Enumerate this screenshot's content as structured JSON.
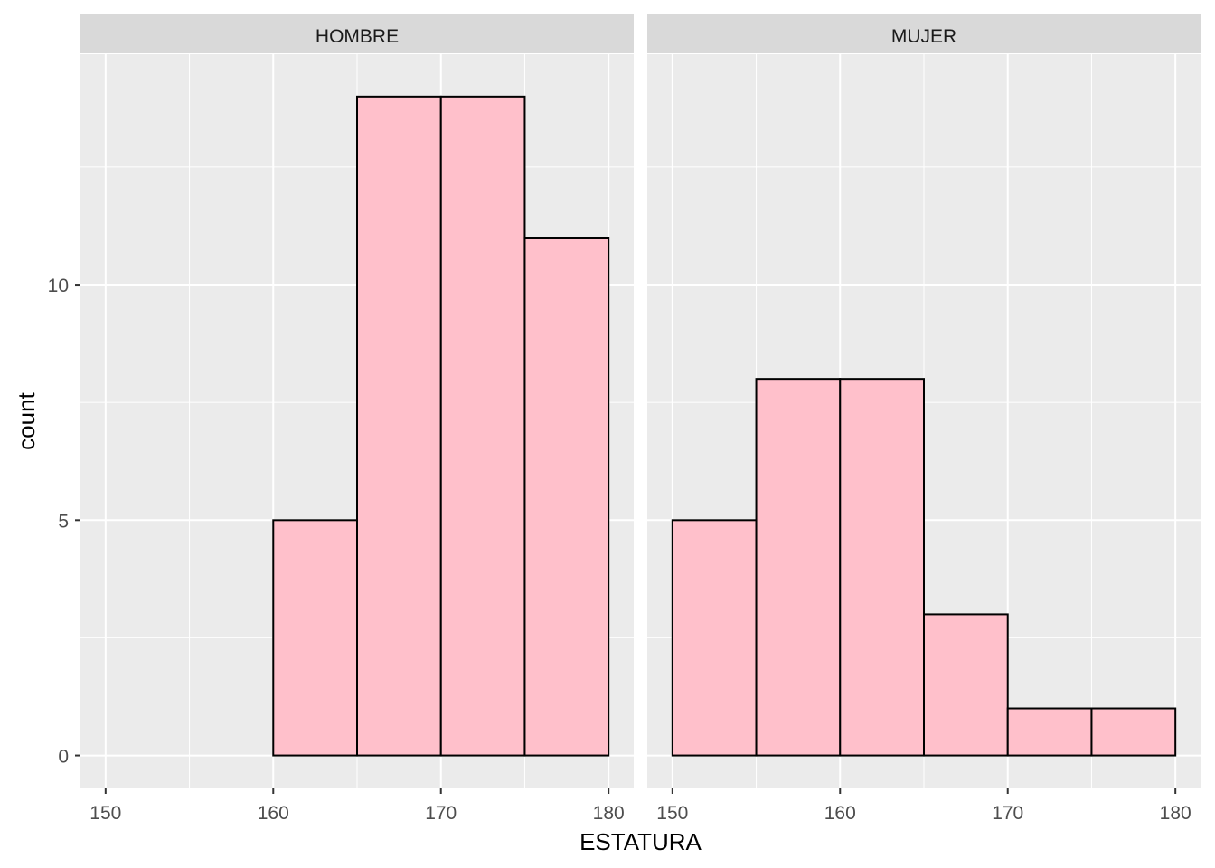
{
  "chart_data": {
    "type": "bar",
    "subtype": "faceted-histogram",
    "xlabel": "ESTATURA",
    "ylabel": "count",
    "bin_width": 5,
    "bin_edges": [
      150,
      155,
      160,
      165,
      170,
      175,
      180
    ],
    "x_ticks": [
      "150",
      "160",
      "170",
      "180"
    ],
    "y_ticks": [
      "0",
      "5",
      "10"
    ],
    "xlim": [
      148.5,
      181.5
    ],
    "ylim": [
      -0.7,
      14.9
    ],
    "grid": true,
    "legend": "none",
    "colors": {
      "panel_background": "#ebebeb",
      "strip_background": "#d9d9d9",
      "bar_fill": "#ffc0cb",
      "bar_outline": "#000000",
      "grid": "#ffffff"
    },
    "facets": [
      {
        "label": "HOMBRE",
        "values": [
          0,
          0,
          5,
          14,
          14,
          11
        ]
      },
      {
        "label": "MUJER",
        "values": [
          5,
          8,
          8,
          3,
          1,
          1
        ]
      }
    ]
  }
}
